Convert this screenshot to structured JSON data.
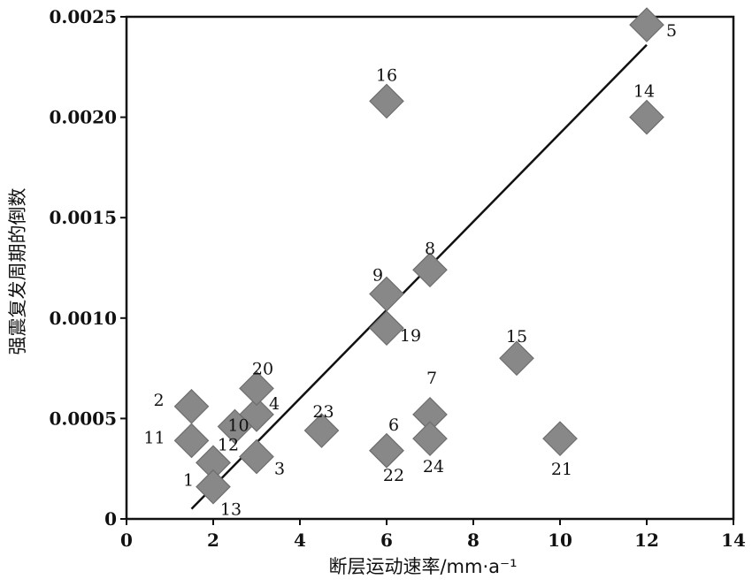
{
  "chart_data": {
    "type": "scatter",
    "xlabel": "断层运动速率/mm·a⁻¹",
    "ylabel": "强震复发周期的倒数",
    "xlim": [
      0,
      14
    ],
    "ylim": [
      0,
      0.0025
    ],
    "x_ticks": [
      0,
      2,
      4,
      6,
      8,
      10,
      12,
      14
    ],
    "y_ticks": [
      "0",
      "0.0005",
      "0.0010",
      "0.0015",
      "0.0020",
      "0.0025"
    ],
    "grid": false,
    "marker": "diamond",
    "marker_color": "#888888",
    "points": [
      {
        "label": "1",
        "x": 2.0,
        "y": 0.00028
      },
      {
        "label": "2",
        "x": 1.5,
        "y": 0.00056
      },
      {
        "label": "3",
        "x": 3.0,
        "y": 0.00031
      },
      {
        "label": "4",
        "x": 3.0,
        "y": 0.00052
      },
      {
        "label": "5",
        "x": 12.0,
        "y": 0.00246
      },
      {
        "label": "6",
        "x": 6.0,
        "y": 0.00034
      },
      {
        "label": "7",
        "x": 7.0,
        "y": 0.00052
      },
      {
        "label": "8",
        "x": 7.0,
        "y": 0.00124
      },
      {
        "label": "9",
        "x": 6.0,
        "y": 0.00112
      },
      {
        "label": "10",
        "x": 2.5,
        "y": 0.00046
      },
      {
        "label": "11",
        "x": 1.5,
        "y": 0.00039
      },
      {
        "label": "12",
        "x": 2.0,
        "y": 0.00028
      },
      {
        "label": "13",
        "x": 2.0,
        "y": 0.00016
      },
      {
        "label": "14",
        "x": 12.0,
        "y": 0.002
      },
      {
        "label": "15",
        "x": 9.0,
        "y": 0.0008
      },
      {
        "label": "16",
        "x": 6.0,
        "y": 0.00208
      },
      {
        "label": "19",
        "x": 6.0,
        "y": 0.00095
      },
      {
        "label": "20",
        "x": 3.0,
        "y": 0.00065
      },
      {
        "label": "21",
        "x": 10.0,
        "y": 0.0004
      },
      {
        "label": "22",
        "x": 6.0,
        "y": 0.00034
      },
      {
        "label": "23",
        "x": 4.5,
        "y": 0.00044
      },
      {
        "label": "24",
        "x": 7.0,
        "y": 0.0004
      }
    ],
    "fit_line": {
      "x": [
        1.5,
        12.0
      ],
      "y": [
        5e-05,
        0.00236
      ]
    }
  }
}
